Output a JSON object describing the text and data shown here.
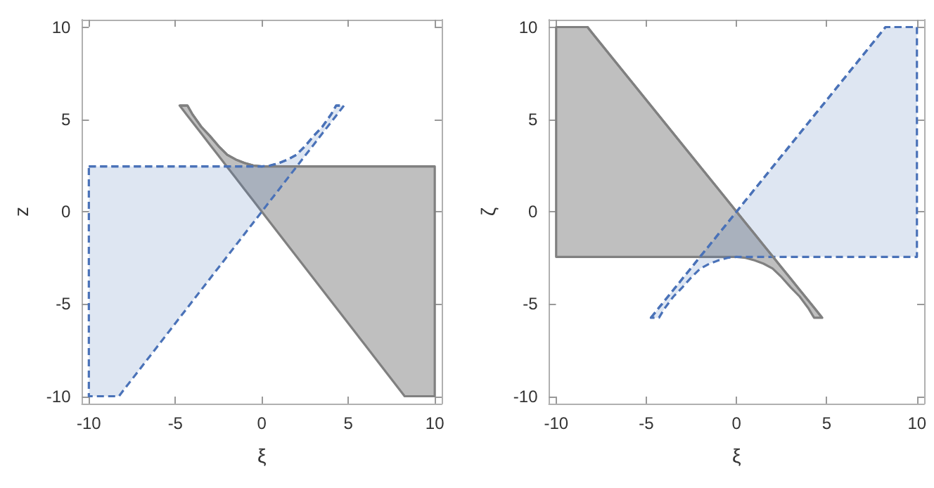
{
  "chart_data": [
    {
      "type": "line",
      "xlabel": "ξ",
      "ylabel": "z",
      "xlim": [
        -10.4,
        10.4
      ],
      "ylim": [
        -10.4,
        10.4
      ],
      "xticks": [
        -10,
        -5,
        0,
        5,
        10
      ],
      "yticks": [
        -10,
        -5,
        0,
        5,
        10
      ],
      "series": [
        {
          "color": "#808080",
          "line_style": "solid",
          "x": [
            -4.75,
            -4.3,
            -4,
            -3.5,
            -3,
            -2.5,
            -2,
            -1.5,
            -1,
            -0.5,
            0,
            2,
            4,
            6,
            8.26,
            10
          ],
          "values": [
            5.75,
            5.75,
            5.26,
            4.6,
            4.1,
            3.55,
            3.08,
            2.82,
            2.64,
            2.5,
            2.45,
            2.45,
            2.45,
            2.45,
            2.45,
            2.45
          ],
          "upper": [
            5.75,
            5.75,
            5.26,
            4.6,
            4.1,
            3.55,
            3.08,
            2.82,
            2.64,
            2.5,
            2.45,
            2.45,
            2.45,
            2.45,
            2.45,
            2.45
          ],
          "lower": [
            5.75,
            5.2,
            4.84,
            4.24,
            3.63,
            3.03,
            2.42,
            1.82,
            1.21,
            0.61,
            0,
            -2.42,
            -4.84,
            -7.26,
            -10,
            -10
          ]
        },
        {
          "color": "#4a72b8",
          "line_style": "dashed",
          "x": [
            -10,
            -8.26,
            -8,
            -6,
            -4,
            -2,
            0,
            0.5,
            1,
            1.5,
            2,
            2.5,
            3,
            3.5,
            4,
            4.3,
            4.75
          ],
          "values": [
            2.45,
            2.45,
            2.45,
            2.45,
            2.45,
            2.45,
            2.45,
            2.5,
            2.64,
            2.82,
            3.08,
            3.55,
            4.1,
            4.6,
            5.26,
            5.75,
            5.75
          ],
          "upper": [
            2.45,
            2.45,
            2.45,
            2.45,
            2.45,
            2.45,
            2.45,
            2.5,
            2.64,
            2.82,
            3.08,
            3.55,
            4.1,
            4.6,
            5.26,
            5.75,
            5.75
          ],
          "lower": [
            -10,
            -10,
            -9.68,
            -7.26,
            -4.84,
            -2.42,
            0,
            0.61,
            1.21,
            1.82,
            2.42,
            3.03,
            3.63,
            4.24,
            4.84,
            5.2,
            5.75
          ]
        }
      ]
    },
    {
      "type": "line",
      "xlabel": "ξ",
      "ylabel": "ζ",
      "xlim": [
        -10.4,
        10.4
      ],
      "ylim": [
        -10.4,
        10.4
      ],
      "xticks": [
        -10,
        -5,
        0,
        5,
        10
      ],
      "yticks": [
        -10,
        -5,
        0,
        5,
        10
      ],
      "series": [
        {
          "color": "#808080",
          "line_style": "solid",
          "x": [
            -10,
            -8.26,
            -8,
            -6,
            -4,
            -2,
            0,
            0.5,
            1,
            1.5,
            2,
            2.5,
            3,
            3.5,
            4,
            4.3,
            4.75
          ],
          "values": [
            10,
            10,
            9.68,
            7.26,
            4.84,
            2.42,
            0,
            -0.61,
            -1.21,
            -1.82,
            -2.42,
            -3.03,
            -3.63,
            -4.24,
            -4.84,
            -5.2,
            -5.75
          ],
          "upper": [
            10,
            10,
            9.68,
            7.26,
            4.84,
            2.42,
            0,
            -0.61,
            -1.21,
            -1.82,
            -2.42,
            -3.03,
            -3.63,
            -4.24,
            -4.84,
            -5.2,
            -5.75
          ],
          "lower": [
            -2.45,
            -2.45,
            -2.45,
            -2.45,
            -2.45,
            -2.45,
            -2.45,
            -2.5,
            -2.64,
            -2.82,
            -3.08,
            -3.55,
            -4.1,
            -4.6,
            -5.26,
            -5.75,
            -5.75
          ]
        },
        {
          "color": "#4a72b8",
          "line_style": "dashed",
          "x": [
            -4.75,
            -4.3,
            -4,
            -3.5,
            -3,
            -2.5,
            -2,
            -1.5,
            -1,
            -0.5,
            0,
            2,
            4,
            6,
            8.26,
            10
          ],
          "values": [
            -5.75,
            -5.2,
            -4.84,
            -4.24,
            -3.63,
            -3.03,
            -2.42,
            -1.82,
            -1.21,
            -0.61,
            0,
            2.42,
            4.84,
            7.26,
            10,
            10
          ],
          "upper": [
            -5.75,
            -5.2,
            -4.84,
            -4.24,
            -3.63,
            -3.03,
            -2.42,
            -1.82,
            -1.21,
            -0.61,
            0,
            2.42,
            4.84,
            7.26,
            10,
            10
          ],
          "lower": [
            -5.75,
            -5.75,
            -5.26,
            -4.6,
            -4.1,
            -3.55,
            -3.08,
            -2.82,
            -2.64,
            -2.5,
            -2.45,
            -2.45,
            -2.45,
            -2.45,
            -2.45,
            -2.45
          ]
        }
      ]
    }
  ]
}
